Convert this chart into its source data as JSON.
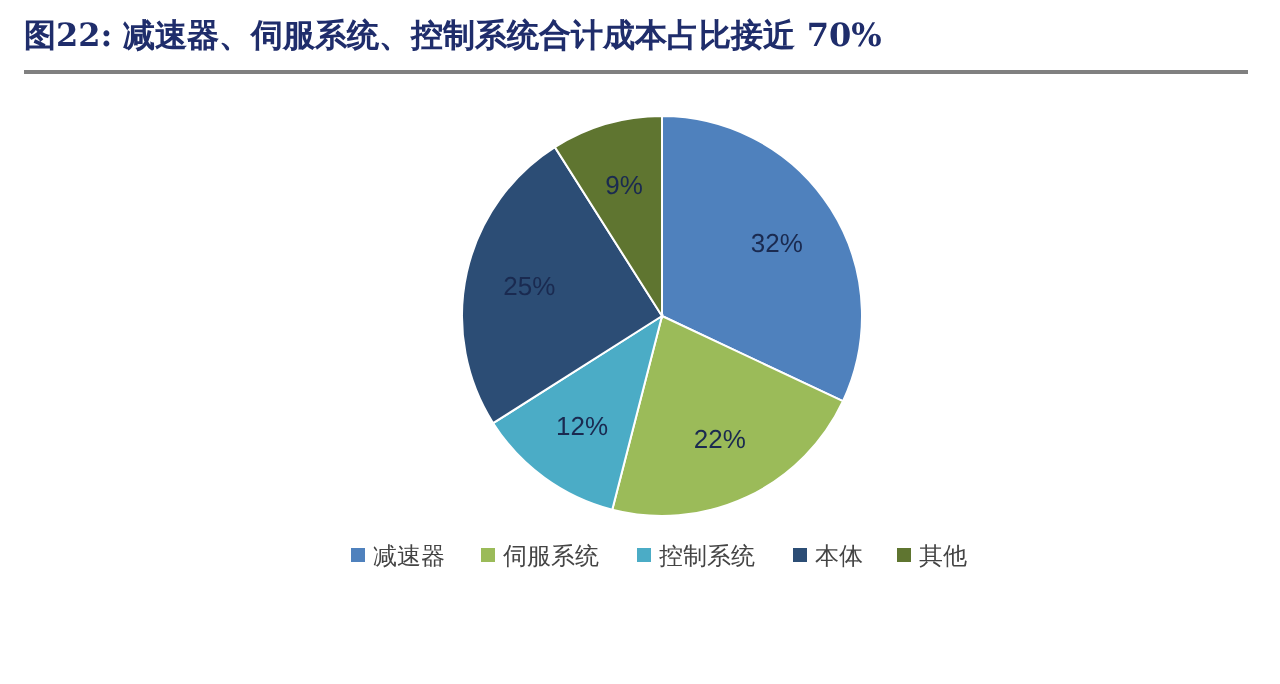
{
  "chart_data": {
    "type": "pie",
    "title": "图22:  减速器、伺服系统、控制系统合计成本占比接近 70%",
    "categories": [
      "减速器",
      "伺服系统",
      "控制系统",
      "本体",
      "其他"
    ],
    "values": [
      32,
      22,
      12,
      25,
      9
    ],
    "colors": [
      "#4f81bd",
      "#9bbb59",
      "#4bacc6",
      "#2c4d75",
      "#5f7530"
    ],
    "value_labels": [
      "32%",
      "22%",
      "12%",
      "25%",
      "9%"
    ],
    "legend": "bottom"
  }
}
